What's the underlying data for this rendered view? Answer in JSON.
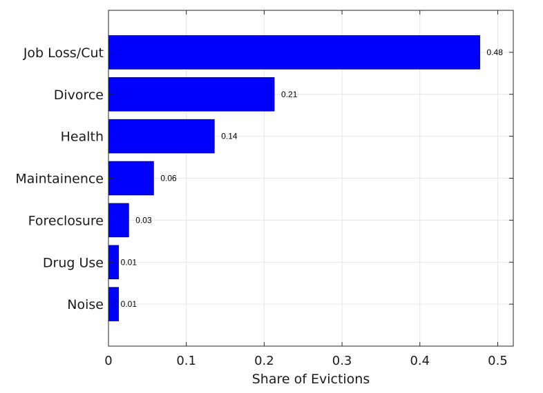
{
  "chart_data": {
    "type": "bar",
    "orientation": "horizontal",
    "categories": [
      "Job Loss/Cut",
      "Divorce",
      "Health",
      "Maintainence",
      "Foreclosure",
      "Drug Use",
      "Noise"
    ],
    "values": [
      0.477,
      0.213,
      0.136,
      0.058,
      0.026,
      0.013,
      0.013
    ],
    "data_labels": [
      "0.48",
      "0.21",
      "0.14",
      "0.06",
      "0.03",
      "0.01",
      "0.01"
    ],
    "xlabel": "Share of Evictions",
    "ylabel": "",
    "title": "",
    "xlim": [
      0,
      0.52
    ],
    "x_ticks": [
      0,
      0.1,
      0.2,
      0.3,
      0.4,
      0.5
    ],
    "x_tick_labels": [
      "0",
      "0.1",
      "0.2",
      "0.3",
      "0.4",
      "0.5"
    ],
    "grid": true,
    "legend": "none",
    "colors": {
      "bar": "#0000ff",
      "bar_edge": "#000066",
      "grid": "#e6e6e6",
      "axis": "#262626"
    }
  }
}
